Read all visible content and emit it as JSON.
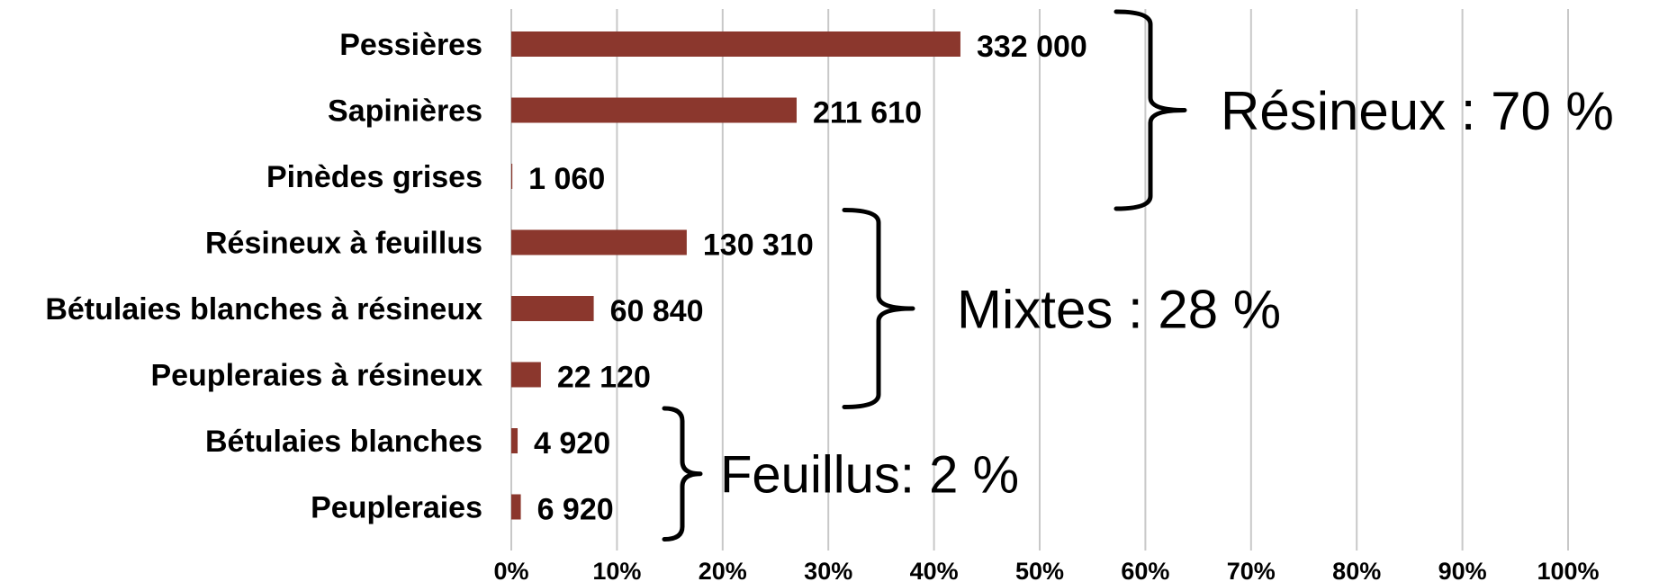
{
  "chart_data": {
    "type": "bar",
    "orientation": "horizontal",
    "categories": [
      "Pessières",
      "Sapinières",
      "Pinèdes grises",
      "Résineux à feuillus",
      "Bétulaies blanches à résineux",
      "Peupleraies à résineux",
      "Bétulaies blanches",
      "Peupleraies"
    ],
    "values_pct": [
      42.5,
      27.0,
      0.1,
      16.6,
      7.8,
      2.8,
      0.6,
      0.9
    ],
    "value_labels": [
      "332 000",
      "211 610",
      "1 060",
      "130 310",
      "60 840",
      "22 120",
      "4 920",
      "6 920"
    ],
    "xlim": [
      0,
      100
    ],
    "x_ticks": [
      "0%",
      "10%",
      "20%",
      "30%",
      "40%",
      "50%",
      "60%",
      "70%",
      "80%",
      "90%",
      "100%"
    ],
    "grid": true,
    "bar_color": "#8B372D",
    "groups": [
      {
        "label": "Résineux : 70 %",
        "first": 0,
        "last": 2
      },
      {
        "label": "Mixtes : 28 %",
        "first": 3,
        "last": 5
      },
      {
        "label": "Feuillus: 2 %",
        "first": 6,
        "last": 7
      }
    ]
  }
}
